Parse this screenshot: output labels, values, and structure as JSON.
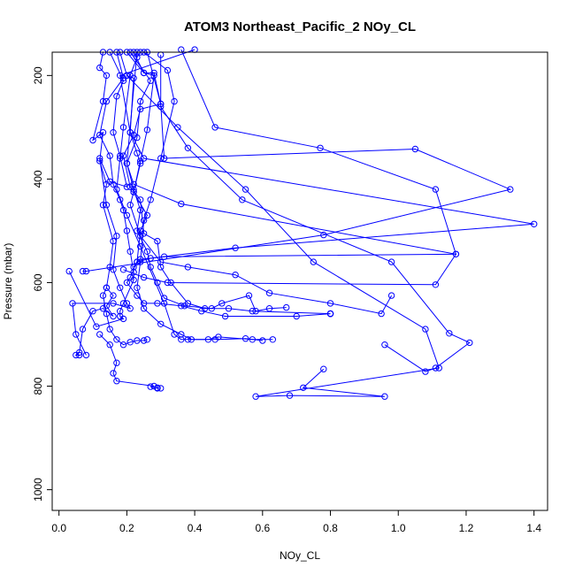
{
  "chart_data": {
    "type": "line",
    "title": "ATOM3 Northeast_Pacific_2 NOy_CL",
    "xlabel": "NOy_CL",
    "ylabel": "Pressure (mbar)",
    "xlim": [
      -0.02,
      1.44
    ],
    "ylim": [
      1040,
      155
    ],
    "y_reversed": true,
    "x_ticks": [
      0.0,
      0.2,
      0.4,
      0.6,
      0.8,
      1.0,
      1.2,
      1.4
    ],
    "x_tick_labels": [
      "0.0",
      "0.2",
      "0.4",
      "0.6",
      "0.8",
      "1.0",
      "1.2",
      "1.4"
    ],
    "y_ticks": [
      200,
      400,
      600,
      800,
      1000
    ],
    "y_tick_labels": [
      "200",
      "400",
      "600",
      "800",
      "1000"
    ],
    "grid": false,
    "series_color": "#0000ff",
    "marker": "open-circle",
    "series": [
      {
        "x": [
          0.13,
          0.12,
          0.14,
          0.13,
          0.1,
          0.13,
          0.12,
          0.14,
          0.13,
          0.16,
          0.15,
          0.14,
          0.16,
          0.14,
          0.16,
          0.13,
          0.1,
          0.07,
          0.06,
          0.05,
          0.06
        ],
        "y": [
          155,
          185,
          200,
          250,
          325,
          310,
          365,
          410,
          450,
          520,
          570,
          610,
          625,
          645,
          665,
          650,
          655,
          690,
          735,
          740,
          740
        ]
      },
      {
        "x": [
          0.15,
          0.19,
          0.17,
          0.16,
          0.18,
          0.2,
          0.15,
          0.12,
          0.14,
          0.17,
          0.16,
          0.18,
          0.2,
          0.21,
          0.16,
          0.04,
          0.05,
          0.08
        ],
        "y": [
          155,
          210,
          240,
          310,
          355,
          415,
          405,
          360,
          450,
          510,
          575,
          610,
          640,
          650,
          640,
          640,
          700,
          740
        ]
      },
      {
        "x": [
          0.17,
          0.19,
          0.14,
          0.12,
          0.15,
          0.16,
          0.18,
          0.19,
          0.2,
          0.21,
          0.22,
          0.22,
          0.19,
          0.18,
          0.18,
          0.19,
          0.11,
          0.03
        ],
        "y": [
          155,
          205,
          250,
          315,
          355,
          410,
          440,
          460,
          500,
          540,
          580,
          595,
          640,
          655,
          665,
          670,
          685,
          578
        ]
      },
      {
        "x": [
          0.18,
          0.2,
          0.22,
          0.21,
          0.23,
          0.24,
          0.22,
          0.26,
          0.24,
          0.23,
          0.21,
          0.2,
          0.23,
          0.25,
          0.29,
          0.36,
          0.42,
          0.49,
          0.7,
          0.8,
          0.8,
          0.8
        ],
        "y": [
          155,
          200,
          205,
          310,
          350,
          370,
          425,
          470,
          500,
          560,
          590,
          600,
          625,
          640,
          640,
          645,
          655,
          665,
          665,
          660,
          660,
          660
        ]
      },
      {
        "x": [
          0.2,
          0.25,
          0.28,
          0.3,
          0.24,
          0.22,
          0.19,
          0.21,
          0.24,
          0.25,
          0.29,
          0.3,
          0.33,
          0.38,
          0.43,
          0.5,
          0.57,
          0.8
        ],
        "y": [
          155,
          195,
          195,
          255,
          265,
          315,
          355,
          415,
          440,
          505,
          520,
          570,
          600,
          640,
          650,
          650,
          655,
          660
        ]
      },
      {
        "x": [
          0.21,
          0.27,
          0.24,
          0.23,
          0.2,
          0.22,
          0.24,
          0.23,
          0.26,
          0.27,
          0.29,
          0.31,
          0.37,
          0.45,
          0.48,
          0.56,
          0.58,
          0.62,
          0.67
        ],
        "y": [
          155,
          210,
          250,
          320,
          370,
          420,
          460,
          500,
          540,
          570,
          600,
          630,
          645,
          650,
          640,
          625,
          655,
          650,
          648
        ]
      },
      {
        "x": [
          0.22,
          0.25,
          0.28,
          0.26,
          0.24,
          0.22,
          0.21,
          0.24,
          0.3,
          0.38,
          0.52,
          0.62,
          0.8,
          0.95,
          0.98
        ],
        "y": [
          155,
          195,
          200,
          305,
          365,
          425,
          450,
          510,
          560,
          570,
          585,
          620,
          640,
          660,
          625
        ]
      },
      {
        "x": [
          0.24,
          0.23,
          0.21,
          0.19,
          0.18,
          0.17,
          0.2,
          0.24,
          0.31,
          0.34,
          0.36,
          0.38,
          0.44,
          0.47,
          0.57,
          0.63
        ],
        "y": [
          155,
          165,
          200,
          300,
          360,
          420,
          470,
          530,
          640,
          700,
          710,
          710,
          710,
          705,
          710,
          710
        ]
      },
      {
        "x": [
          0.25,
          0.32,
          0.34,
          0.3,
          0.27,
          0.25,
          0.24,
          0.23,
          0.25,
          0.3,
          0.36,
          0.39,
          0.46,
          0.55,
          0.6
        ],
        "y": [
          155,
          190,
          250,
          360,
          440,
          480,
          560,
          610,
          650,
          680,
          700,
          710,
          710,
          708,
          712
        ]
      },
      {
        "x": [
          0.26,
          0.3,
          0.31,
          1.05,
          1.33,
          0.78,
          0.08,
          0.07
        ],
        "y": [
          155,
          255,
          360,
          342,
          420,
          508,
          578,
          578
        ]
      },
      {
        "x": [
          0.4,
          0.18,
          0.21,
          0.25,
          1.4,
          0.52,
          0.27,
          0.23,
          0.22
        ],
        "y": [
          150,
          200,
          310,
          360,
          487,
          533,
          553,
          560,
          570
        ]
      },
      {
        "x": [
          0.36,
          0.46,
          0.77,
          1.11,
          1.17,
          0.31,
          0.24
        ],
        "y": [
          150,
          300,
          340,
          420,
          545,
          550,
          555
        ]
      },
      {
        "x": [
          0.23,
          0.2,
          0.22,
          0.36,
          1.17,
          1.11,
          0.32,
          0.25,
          0.19
        ],
        "y": [
          155,
          370,
          410,
          448,
          545,
          604,
          600,
          590,
          575
        ]
      },
      {
        "x": [
          0.3,
          0.3,
          0.38,
          0.54,
          0.98,
          1.15,
          1.21,
          1.11,
          1.08,
          0.96
        ],
        "y": [
          160,
          260,
          340,
          440,
          560,
          698,
          716,
          765,
          772,
          720
        ]
      },
      {
        "x": [
          0.2,
          0.35,
          0.55,
          0.75,
          1.08,
          1.12,
          0.58,
          0.68,
          0.96,
          0.72,
          0.78
        ],
        "y": [
          200,
          300,
          420,
          560,
          690,
          765,
          820,
          818,
          820,
          803,
          767
        ]
      },
      {
        "x": [
          0.12,
          0.15,
          0.17,
          0.16,
          0.17,
          0.28,
          0.27,
          0.29,
          0.29,
          0.3
        ],
        "y": [
          700,
          720,
          755,
          775,
          790,
          800,
          801,
          803,
          804,
          804
        ]
      },
      {
        "x": [
          0.14,
          0.13,
          0.14,
          0.15,
          0.17,
          0.19,
          0.21,
          0.23,
          0.25,
          0.26
        ],
        "y": [
          610,
          625,
          660,
          690,
          710,
          720,
          715,
          712,
          712,
          710
        ]
      }
    ]
  }
}
